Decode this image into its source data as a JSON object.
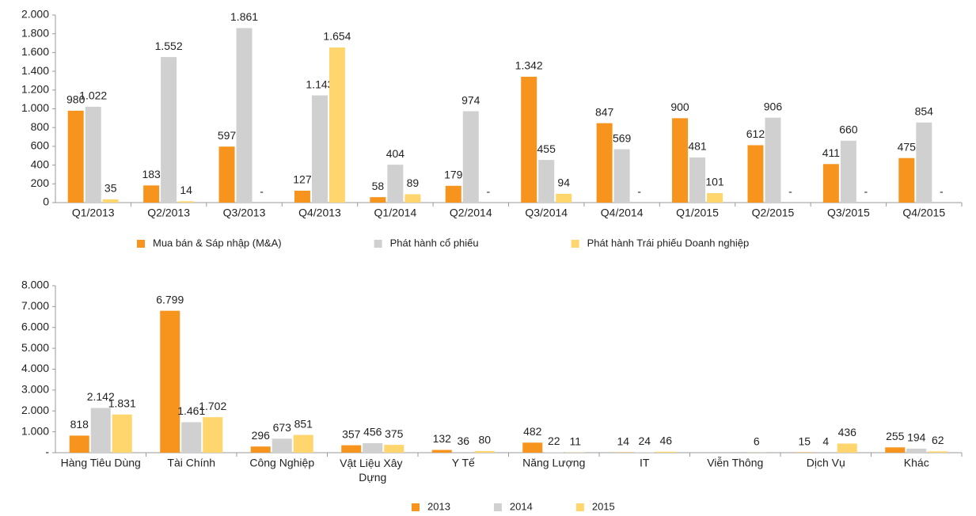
{
  "chart_data": [
    {
      "type": "bar",
      "categories": [
        "Q1/2013",
        "Q2/2013",
        "Q3/2013",
        "Q4/2013",
        "Q1/2014",
        "Q2/2014",
        "Q3/2014",
        "Q4/2014",
        "Q1/2015",
        "Q2/2015",
        "Q3/2015",
        "Q4/2015"
      ],
      "series": [
        {
          "name": "Mua bán & Sáp nhập (M&A)",
          "color": "#f7941d",
          "values": [
            980,
            183,
            597,
            127,
            58,
            179,
            1342,
            847,
            900,
            612,
            411,
            475
          ],
          "value_labels": [
            "980",
            "183",
            "597",
            "127",
            "58",
            "179",
            "1.342",
            "847",
            "900",
            "612",
            "411",
            "475"
          ]
        },
        {
          "name": "Phát hành cổ phiếu",
          "color": "#d0d0d0",
          "values": [
            1022,
            1552,
            1861,
            1143,
            404,
            974,
            455,
            569,
            481,
            906,
            660,
            854
          ],
          "value_labels": [
            "1.022",
            "1.552",
            "1.861",
            "1.143",
            "404",
            "974",
            "455",
            "569",
            "481",
            "906",
            "660",
            "854"
          ]
        },
        {
          "name": "Phát hành Trái phiếu Doanh nghiệp",
          "color": "#ffd66e",
          "values": [
            35,
            14,
            0,
            1654,
            89,
            0,
            94,
            0,
            101,
            0,
            0,
            0
          ],
          "value_labels": [
            "35",
            "14",
            "-",
            "1.654",
            "89",
            "-",
            "94",
            "-",
            "101",
            "-",
            "-",
            "-"
          ]
        }
      ],
      "ylim": [
        0,
        2000
      ],
      "yticks": [
        0,
        {
          "value": 200,
          "label": "200"
        },
        {
          "value": 400,
          "label": "400"
        },
        {
          "value": 600,
          "label": "600"
        },
        {
          "value": 800,
          "label": "800"
        },
        {
          "value": 1000,
          "label": "1.000"
        },
        {
          "value": 1200,
          "label": "1.200"
        },
        {
          "value": 1400,
          "label": "1.400"
        },
        {
          "value": 1600,
          "label": "1.600"
        },
        {
          "value": 1800,
          "label": "1.800"
        },
        {
          "value": 2000,
          "label": "2.000"
        }
      ],
      "grid": false,
      "legend": "bottom"
    },
    {
      "type": "bar",
      "categories": [
        "Hàng Tiêu Dùng",
        "Tài Chính",
        "Công Nghiệp",
        "Vật Liệu Xây Dựng",
        "Y Tế",
        "Năng Lượng",
        "IT",
        "Viễn Thông",
        "Dịch Vụ",
        "Khác"
      ],
      "series": [
        {
          "name": "2013",
          "color": "#f7941d",
          "values": [
            818,
            6799,
            296,
            357,
            132,
            482,
            14,
            null,
            15,
            255
          ],
          "value_labels": [
            "818",
            "6.799",
            "296",
            "357",
            "132",
            "482",
            "14",
            null,
            "15",
            "255"
          ]
        },
        {
          "name": "2014",
          "color": "#d0d0d0",
          "values": [
            2142,
            1461,
            673,
            456,
            36,
            22,
            24,
            null,
            4,
            194
          ],
          "value_labels": [
            "2.142",
            "1.461",
            "673",
            "456",
            "36",
            "22",
            "24",
            null,
            "4",
            "194"
          ]
        },
        {
          "name": "2015",
          "color": "#ffd66e",
          "values": [
            1831,
            1702,
            851,
            375,
            80,
            11,
            46,
            6,
            436,
            62
          ],
          "value_labels": [
            "1.831",
            "1.702",
            "851",
            "375",
            "80",
            "11",
            "46",
            "6",
            "436",
            "62"
          ]
        }
      ],
      "ylim": [
        0,
        8000
      ],
      "yticks": [
        {
          "value": 0,
          "label": "-"
        },
        {
          "value": 1000,
          "label": "1.000"
        },
        {
          "value": 2000,
          "label": "2.000"
        },
        {
          "value": 3000,
          "label": "3.000"
        },
        {
          "value": 4000,
          "label": "4.000"
        },
        {
          "value": 5000,
          "label": "5.000"
        },
        {
          "value": 6000,
          "label": "6.000"
        },
        {
          "value": 7000,
          "label": "7.000"
        },
        {
          "value": 8000,
          "label": "8.000"
        }
      ],
      "grid": false,
      "legend": "bottom"
    }
  ]
}
